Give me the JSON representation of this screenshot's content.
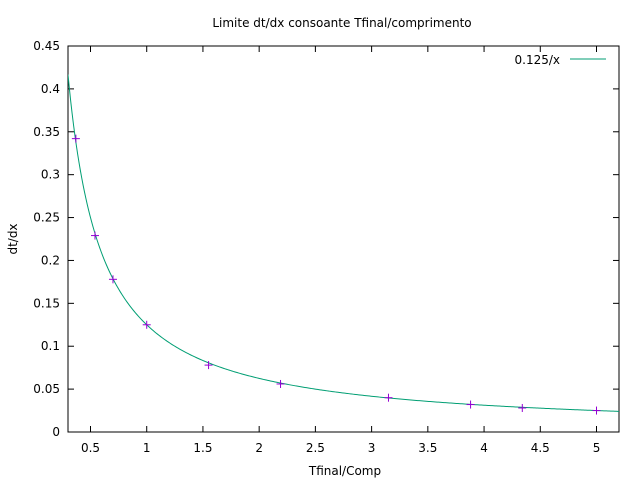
{
  "chart_data": {
    "type": "line",
    "title": "Limite dt/dx consoante Tfinal/comprimento",
    "xlabel": "Tfinal/Comp",
    "ylabel": "dt/dx",
    "xlim": [
      0.3,
      5.2
    ],
    "ylim": [
      0,
      0.45
    ],
    "x_ticks": [
      "0.5",
      "1",
      "1.5",
      "2",
      "2.5",
      "3",
      "3.5",
      "4",
      "4.5",
      "5"
    ],
    "y_ticks": [
      "0",
      "0.05",
      "0.1",
      "0.15",
      "0.2",
      "0.25",
      "0.3",
      "0.35",
      "0.4",
      "0.45"
    ],
    "grid": false,
    "legend_position": "top-right",
    "series": [
      {
        "name": "0.125/x",
        "kind": "curve",
        "formula": "0.125/x",
        "color": "#009e73"
      },
      {
        "kind": "points",
        "marker": "plus",
        "color": "#9400d3",
        "x": [
          0.37,
          0.54,
          0.7,
          1.0,
          1.55,
          2.19,
          3.15,
          3.88,
          4.34,
          5.0
        ],
        "y": [
          0.342,
          0.229,
          0.178,
          0.125,
          0.078,
          0.056,
          0.04,
          0.032,
          0.028,
          0.025
        ]
      }
    ]
  }
}
